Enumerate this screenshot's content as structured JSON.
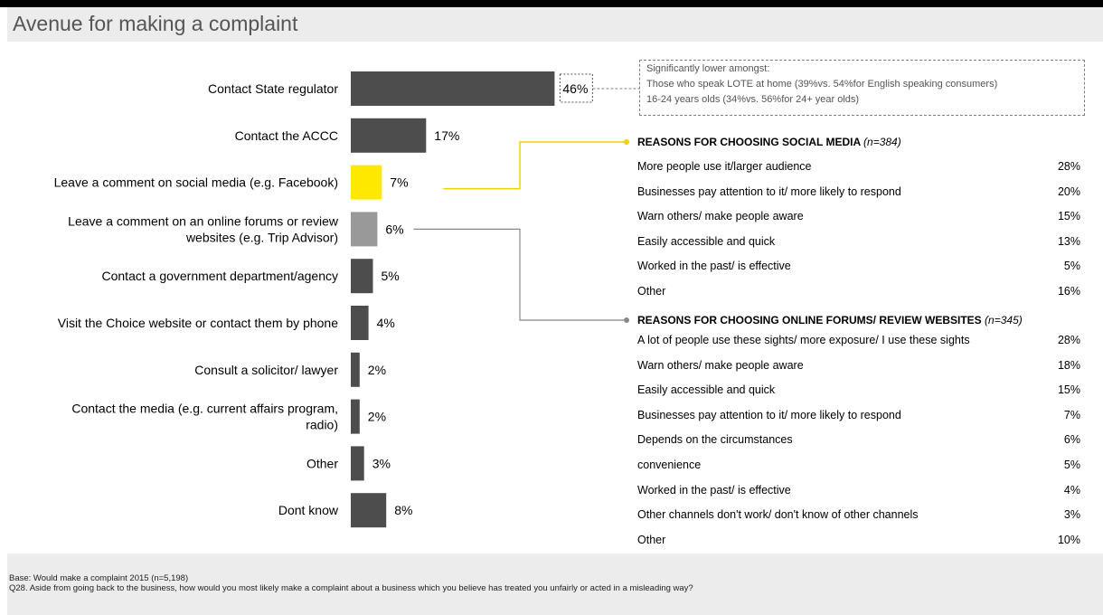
{
  "page": {
    "title": "Avenue for making a complaint"
  },
  "colors": {
    "bar_default": "#4d4d4d",
    "bar_highlight_social": "#ffe800",
    "bar_highlight_forums": "#999999",
    "connector_social": "#f0d000",
    "connector_forums": "#888888",
    "footer_background": "#ececec"
  },
  "chart_data": {
    "type": "bar",
    "orientation": "horizontal",
    "categories": [
      "Contact State regulator",
      "Contact the ACCC",
      "Leave a comment on social media (e.g. Facebook)",
      "Leave a comment on an online forums or review websites  (e.g. Trip Advisor)",
      "Contact a government department/agency",
      "Visit the Choice website or contact them by phone",
      "Consult a solicitor/ lawyer",
      "Contact the media (e.g. current affairs program, radio)",
      "Other",
      "Dont know"
    ],
    "category_lines": [
      [
        "Contact State regulator"
      ],
      [
        "Contact the ACCC"
      ],
      [
        "Leave a comment on social media (e.g. Facebook)"
      ],
      [
        "Leave a comment on an online forums or review",
        "websites  (e.g. Trip Advisor)"
      ],
      [
        "Contact a government department/agency"
      ],
      [
        "Visit the Choice website or contact them by phone"
      ],
      [
        "Consult a solicitor/ lawyer"
      ],
      [
        "Contact the media (e.g. current affairs program,",
        "radio)"
      ],
      [
        "Other"
      ],
      [
        "Dont know"
      ]
    ],
    "values": [
      46,
      17,
      7,
      6,
      5,
      4,
      2,
      2,
      3,
      8
    ],
    "value_labels": [
      "46%",
      "17%",
      "7%",
      "6%",
      "5%",
      "4%",
      "2%",
      "2%",
      "3%",
      "8%"
    ],
    "unit": "%",
    "highlight": {
      "social_index": 2,
      "forums_index": 3,
      "boxed_index": 0
    }
  },
  "callout": {
    "lines": [
      "Significantly lower amongst:",
      "Those who speak LOTE at home (39%vs. 54%for English speaking consumers)",
      "16-24 years olds (34%vs. 56%for 24+ year olds)"
    ]
  },
  "reasons_social": {
    "title": "REASONS FOR CHOOSING SOCIAL MEDIA",
    "n_label": "(n=384)",
    "rows": [
      {
        "label": "More people use it/larger audience",
        "value": "28%"
      },
      {
        "label": "Businesses pay attention to it/ more likely to respond",
        "value": "20%"
      },
      {
        "label": "Warn others/ make people aware",
        "value": "15%"
      },
      {
        "label": "Easily accessible and quick",
        "value": "13%"
      },
      {
        "label": "Worked in the past/ is effective",
        "value": "5%"
      },
      {
        "label": "Other",
        "value": "16%"
      }
    ]
  },
  "reasons_forums": {
    "title": "REASONS FOR CHOOSING ONLINE FORUMS/ REVIEW WEBSITES",
    "n_label": "(n=345)",
    "rows": [
      {
        "label": "A lot of people use these sights/ more exposure/ I use these sights",
        "value": "28%"
      },
      {
        "label": "Warn others/ make people aware",
        "value": "18%"
      },
      {
        "label": "Easily accessible and quick",
        "value": "15%"
      },
      {
        "label": "Businesses pay attention to it/ more likely to respond",
        "value": "7%"
      },
      {
        "label": "Depends on the circumstances",
        "value": "6%"
      },
      {
        "label": "convenience",
        "value": "5%"
      },
      {
        "label": "Worked in the past/ is effective",
        "value": "4%"
      },
      {
        "label": "Other channels don't work/ don't know of other channels",
        "value": "3%"
      },
      {
        "label": "Other",
        "value": "10%"
      }
    ]
  },
  "footer": {
    "base": "Base: Would make a complaint 2015 (n=5,198)",
    "question": "Q28.  Aside from going back to the business, how would you most likely make a complaint about a business which you believe has treated you unfairly or acted in a misleading way?"
  }
}
